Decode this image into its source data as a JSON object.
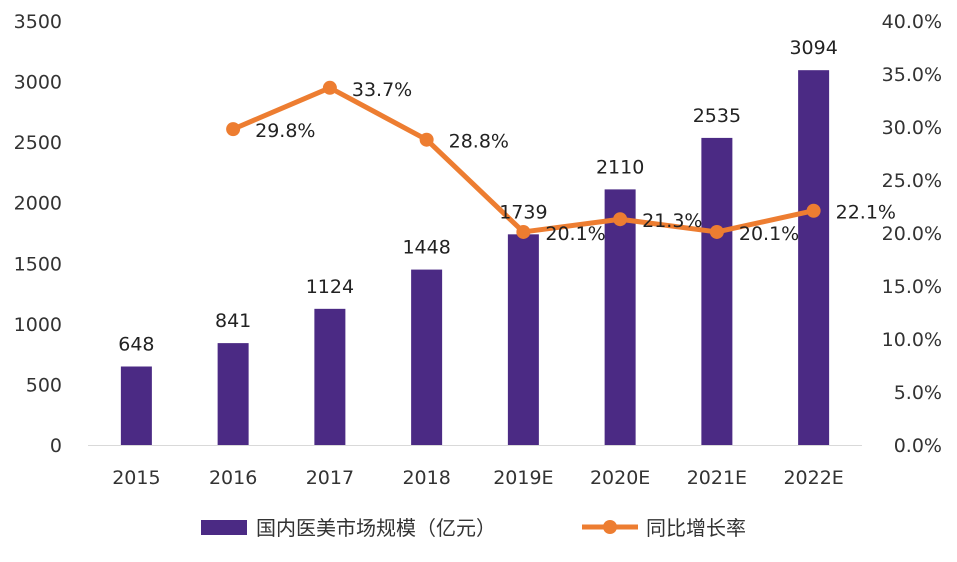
{
  "chart_data": {
    "type": "bar",
    "categories": [
      "2015",
      "2016",
      "2017",
      "2018",
      "2019E",
      "2020E",
      "2021E",
      "2022E"
    ],
    "series": [
      {
        "name": "国内医美市场规模（亿元）",
        "type": "bar",
        "axis": "left",
        "color": "#4b2a84",
        "values": [
          648,
          841,
          1124,
          1448,
          1739,
          2110,
          2535,
          3094
        ],
        "labels": [
          "648",
          "841",
          "1124",
          "1448",
          "1739",
          "2110",
          "2535",
          "3094"
        ]
      },
      {
        "name": "同比增长率",
        "type": "line",
        "axis": "right",
        "color": "#ed7d31",
        "values": [
          null,
          29.8,
          33.7,
          28.8,
          20.1,
          21.3,
          20.1,
          22.1
        ],
        "labels": [
          null,
          "29.8%",
          "33.7%",
          "28.8%",
          "20.1%",
          "21.3%",
          "20.1%",
          "22.1%"
        ]
      }
    ],
    "left_axis": {
      "ylim": [
        0,
        3500
      ],
      "ticks": [
        "0",
        "500",
        "1000",
        "1500",
        "2000",
        "2500",
        "3000",
        "3500"
      ]
    },
    "right_axis": {
      "ylim": [
        0,
        40
      ],
      "ticks": [
        "0.0%",
        "5.0%",
        "10.0%",
        "15.0%",
        "20.0%",
        "25.0%",
        "30.0%",
        "35.0%",
        "40.0%"
      ]
    },
    "grid": false,
    "legend": {
      "position": "bottom",
      "entries": [
        "国内医美市场规模（亿元）",
        "同比增长率"
      ]
    }
  }
}
